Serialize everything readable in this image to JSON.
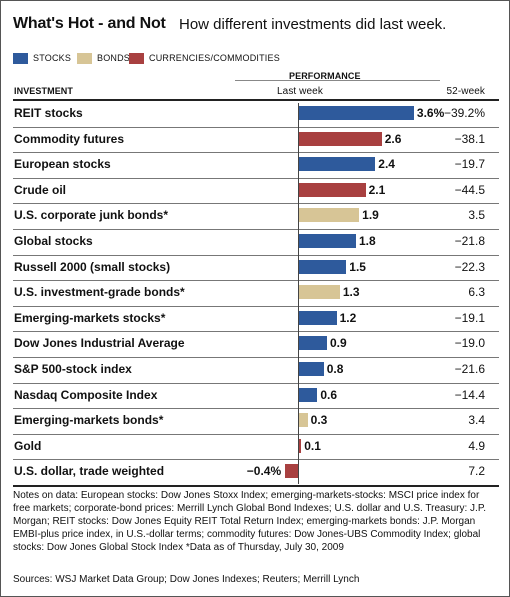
{
  "title": "What's Hot - and Not",
  "subtitle": "How different investments did last week.",
  "legend": [
    {
      "label": "STOCKS",
      "color": "#2e5a9c"
    },
    {
      "label": "BONDS",
      "color": "#d7c596"
    },
    {
      "label": "CURRENCIES/COMMODITIES",
      "color": "#a84040"
    }
  ],
  "headers": {
    "investment": "INVESTMENT",
    "performance": "PERFORMANCE",
    "last_week": "Last week",
    "week52": "52-week"
  },
  "chart_data": {
    "type": "bar",
    "title": "What's Hot - and Not",
    "categories": [
      "REIT stocks",
      "Commodity futures",
      "European stocks",
      "Crude oil",
      "U.S. corporate junk bonds*",
      "Global stocks",
      "Russell 2000 (small stocks)",
      "U.S. investment-grade bonds*",
      "Emerging-markets stocks*",
      "Dow Jones Industrial Average",
      "S&P 500-stock index",
      "Nasdaq Composite Index",
      "Emerging-markets bonds*",
      "Gold",
      "U.S. dollar, trade weighted"
    ],
    "series": [
      {
        "name": "Last week",
        "values": [
          3.6,
          2.6,
          2.4,
          2.1,
          1.9,
          1.8,
          1.5,
          1.3,
          1.2,
          0.9,
          0.8,
          0.6,
          0.3,
          0.1,
          -0.4
        ]
      },
      {
        "name": "52-week",
        "values": [
          -39.2,
          -38.1,
          -19.7,
          -44.5,
          3.5,
          -21.8,
          -22.3,
          6.3,
          -19.1,
          -19.0,
          -21.6,
          -14.4,
          3.4,
          4.9,
          7.2
        ]
      }
    ],
    "labels_last_week": [
      "3.6%",
      "2.6",
      "2.4",
      "2.1",
      "1.9",
      "1.8",
      "1.5",
      "1.3",
      "1.2",
      "0.9",
      "0.8",
      "0.6",
      "0.3",
      "0.1",
      "−0.4%"
    ],
    "labels_52week": [
      "−39.2%",
      "−38.1",
      "−19.7",
      "−44.5",
      "3.5",
      "−21.8",
      "−22.3",
      "6.3",
      "−19.1",
      "−19.0",
      "−21.6",
      "−14.4",
      "3.4",
      "4.9",
      "7.2"
    ],
    "kinds": [
      "stock",
      "commodity",
      "stock",
      "commodity",
      "bond",
      "stock",
      "stock",
      "bond",
      "stock",
      "stock",
      "stock",
      "stock",
      "bond",
      "commodity",
      "commodity"
    ],
    "colors": {
      "stock": "#2e5a9c",
      "bond": "#d7c596",
      "commodity": "#a84040"
    }
  },
  "notes": "Notes on data: European stocks: Dow Jones Stoxx Index; emerging-markets-stocks: MSCI price index for free markets; corporate-bond prices: Merrill Lynch Global Bond Indexes; U.S. dollar and U.S. Treasury: J.P. Morgan; REIT stocks: Dow Jones Equity REIT Total Return Index; emerging-markets bonds: J.P. Morgan EMBI-plus price index, in U.S.-dollar terms; commodity futures: Dow Jones-UBS Commodity Index; global stocks: Dow Jones Global Stock Index  *Data as of Thursday, July 30, 2009",
  "sources": "Sources: WSJ Market Data Group; Dow Jones Indexes; Reuters; Merrill Lynch"
}
